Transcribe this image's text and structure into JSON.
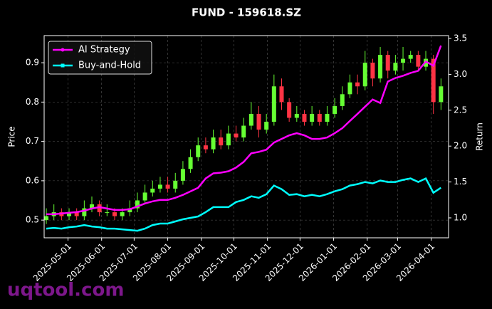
{
  "chart_data": {
    "type": "candlestick",
    "title": "FUND - 159618.SZ",
    "ylabel": "Price",
    "y2label": "Return",
    "watermark": "uqtool.com",
    "x": [
      "2025-04-11",
      "2025-04-18",
      "2025-04-25",
      "2025-05-02",
      "2025-05-09",
      "2025-05-16",
      "2025-05-23",
      "2025-05-30",
      "2025-06-06",
      "2025-06-13",
      "2025-06-20",
      "2025-06-27",
      "2025-07-04",
      "2025-07-11",
      "2025-07-18",
      "2025-07-25",
      "2025-08-01",
      "2025-08-08",
      "2025-08-15",
      "2025-08-22",
      "2025-08-29",
      "2025-09-05",
      "2025-09-12",
      "2025-09-19",
      "2025-09-26",
      "2025-10-03",
      "2025-10-10",
      "2025-10-17",
      "2025-10-24",
      "2025-10-31",
      "2025-11-07",
      "2025-11-14",
      "2025-11-21",
      "2025-11-28",
      "2025-12-05",
      "2025-12-12",
      "2025-12-19",
      "2025-12-26",
      "2026-01-02",
      "2026-01-09",
      "2026-01-16",
      "2026-01-23",
      "2026-01-30",
      "2026-02-06",
      "2026-02-13",
      "2026-02-20",
      "2026-02-27",
      "2026-03-06",
      "2026-03-13",
      "2026-03-20",
      "2026-03-27",
      "2026-04-03",
      "2026-04-10"
    ],
    "open": [
      0.5,
      0.51,
      0.52,
      0.51,
      0.52,
      0.51,
      0.53,
      0.54,
      0.52,
      0.52,
      0.51,
      0.52,
      0.53,
      0.55,
      0.57,
      0.58,
      0.59,
      0.58,
      0.6,
      0.63,
      0.66,
      0.69,
      0.68,
      0.71,
      0.69,
      0.72,
      0.71,
      0.74,
      0.77,
      0.73,
      0.75,
      0.84,
      0.8,
      0.76,
      0.77,
      0.75,
      0.77,
      0.75,
      0.77,
      0.79,
      0.82,
      0.85,
      0.84,
      0.9,
      0.86,
      0.92,
      0.88,
      0.9,
      0.91,
      0.92,
      0.89,
      0.91,
      0.8
    ],
    "high": [
      0.53,
      0.54,
      0.53,
      0.53,
      0.53,
      0.55,
      0.56,
      0.55,
      0.54,
      0.53,
      0.53,
      0.55,
      0.57,
      0.59,
      0.6,
      0.61,
      0.61,
      0.62,
      0.65,
      0.68,
      0.71,
      0.71,
      0.73,
      0.73,
      0.74,
      0.74,
      0.76,
      0.8,
      0.79,
      0.77,
      0.87,
      0.86,
      0.81,
      0.79,
      0.78,
      0.79,
      0.78,
      0.79,
      0.81,
      0.84,
      0.87,
      0.87,
      0.93,
      0.91,
      0.94,
      0.93,
      0.92,
      0.94,
      0.93,
      0.93,
      0.93,
      0.92,
      0.86
    ],
    "low": [
      0.49,
      0.5,
      0.5,
      0.5,
      0.5,
      0.5,
      0.52,
      0.51,
      0.51,
      0.5,
      0.5,
      0.51,
      0.52,
      0.54,
      0.56,
      0.57,
      0.57,
      0.57,
      0.59,
      0.62,
      0.65,
      0.67,
      0.67,
      0.68,
      0.68,
      0.7,
      0.7,
      0.73,
      0.71,
      0.72,
      0.74,
      0.78,
      0.75,
      0.75,
      0.74,
      0.74,
      0.74,
      0.74,
      0.76,
      0.78,
      0.81,
      0.82,
      0.83,
      0.84,
      0.85,
      0.86,
      0.87,
      0.88,
      0.9,
      0.88,
      0.88,
      0.77,
      0.78
    ],
    "close": [
      0.51,
      0.52,
      0.51,
      0.52,
      0.51,
      0.53,
      0.54,
      0.52,
      0.52,
      0.51,
      0.52,
      0.53,
      0.55,
      0.57,
      0.58,
      0.59,
      0.58,
      0.6,
      0.63,
      0.66,
      0.69,
      0.68,
      0.71,
      0.69,
      0.72,
      0.71,
      0.74,
      0.77,
      0.73,
      0.75,
      0.84,
      0.8,
      0.76,
      0.77,
      0.75,
      0.77,
      0.75,
      0.77,
      0.79,
      0.82,
      0.85,
      0.84,
      0.9,
      0.86,
      0.92,
      0.88,
      0.9,
      0.91,
      0.92,
      0.89,
      0.91,
      0.8,
      0.84
    ],
    "up_color": "#66ff33",
    "down_color": "#ff3344",
    "series": [
      {
        "name": "AI Strategy",
        "color": "#ff00ff",
        "axis": "y2",
        "values": [
          1.05,
          1.05,
          1.06,
          1.07,
          1.08,
          1.1,
          1.13,
          1.15,
          1.13,
          1.11,
          1.11,
          1.12,
          1.16,
          1.2,
          1.23,
          1.25,
          1.25,
          1.28,
          1.32,
          1.37,
          1.42,
          1.55,
          1.62,
          1.63,
          1.65,
          1.7,
          1.78,
          1.9,
          1.92,
          1.95,
          2.05,
          2.1,
          2.15,
          2.18,
          2.15,
          2.1,
          2.1,
          2.12,
          2.18,
          2.25,
          2.35,
          2.45,
          2.55,
          2.65,
          2.6,
          2.9,
          2.95,
          2.98,
          3.02,
          3.05,
          3.18,
          3.12,
          3.4
        ]
      },
      {
        "name": "Buy-and-Hold",
        "color": "#00ffff",
        "axis": "y2",
        "values": [
          0.85,
          0.86,
          0.85,
          0.87,
          0.88,
          0.9,
          0.88,
          0.87,
          0.85,
          0.85,
          0.84,
          0.83,
          0.82,
          0.85,
          0.9,
          0.92,
          0.92,
          0.95,
          0.98,
          1.0,
          1.02,
          1.08,
          1.15,
          1.15,
          1.15,
          1.22,
          1.25,
          1.3,
          1.28,
          1.33,
          1.45,
          1.4,
          1.32,
          1.33,
          1.3,
          1.32,
          1.3,
          1.33,
          1.37,
          1.4,
          1.45,
          1.47,
          1.5,
          1.48,
          1.52,
          1.5,
          1.5,
          1.53,
          1.55,
          1.5,
          1.55,
          1.35,
          1.42
        ]
      }
    ],
    "xlim": [
      "2025-04-09",
      "2026-04-17"
    ],
    "xticks": [
      "2025-05-01",
      "2025-06-01",
      "2025-07-01",
      "2025-08-01",
      "2025-09-01",
      "2025-10-01",
      "2025-11-01",
      "2025-12-01",
      "2026-01-01",
      "2026-02-01",
      "2026-03-01",
      "2026-04-01"
    ],
    "ylim": [
      0.455,
      0.969
    ],
    "yticks": [
      0.5,
      0.6,
      0.7,
      0.8,
      0.9
    ],
    "y2lim": [
      0.722,
      3.54
    ],
    "y2ticks": [
      {
        "value": 1,
        "label": "1.0"
      },
      {
        "value": 1.5,
        "label": "1.5"
      },
      {
        "value": 2,
        "label": "2.0"
      },
      {
        "value": 2.5,
        "label": "2.5"
      },
      {
        "value": 3,
        "label": "3.0"
      },
      {
        "value": 3.5,
        "label": "3.5"
      }
    ],
    "grid": true,
    "legend": "upper left"
  }
}
